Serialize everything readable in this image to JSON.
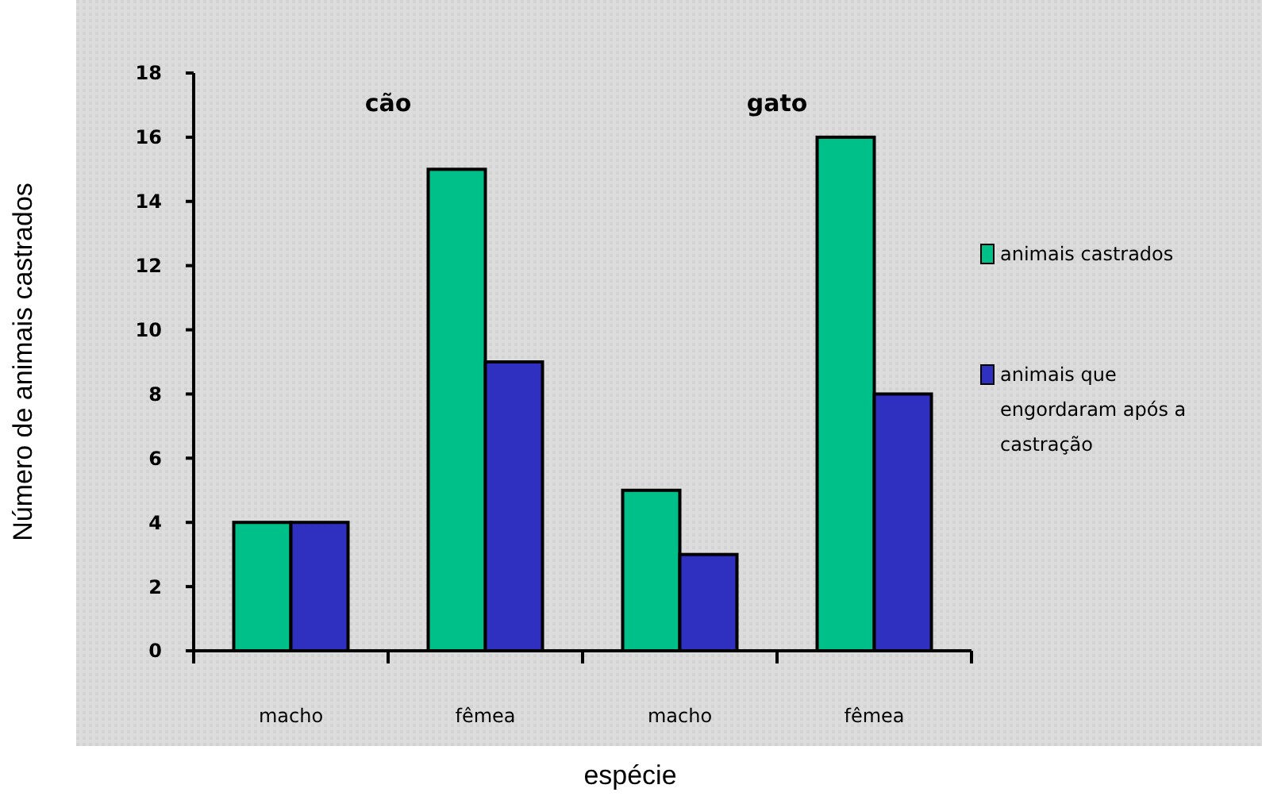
{
  "chart_data": {
    "type": "bar",
    "xlabel": "espécie",
    "ylabel": "Número de animais castrados",
    "categories": [
      "macho",
      "fêmea",
      "macho",
      "fêmea"
    ],
    "series": [
      {
        "name": "animais castrados",
        "color": "#00c08a",
        "values": [
          4,
          15,
          5,
          16
        ]
      },
      {
        "name": "animais que engordaram após a castração",
        "color": "#3030c0",
        "values": [
          4,
          9,
          3,
          8
        ]
      }
    ],
    "annotations": [
      "cão",
      "gato"
    ],
    "ylim": [
      0,
      18
    ],
    "yticks": [
      0,
      2,
      4,
      6,
      8,
      10,
      12,
      14,
      16,
      18
    ],
    "grid": false,
    "legend": "right"
  }
}
